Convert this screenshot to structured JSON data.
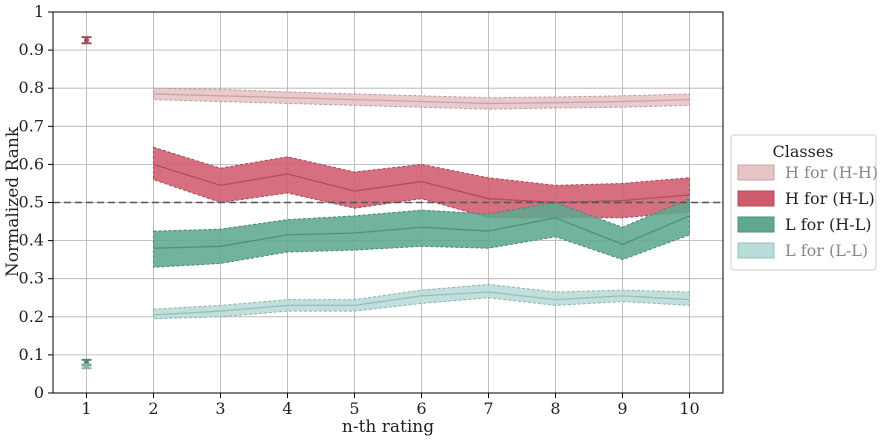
{
  "chart_data": {
    "type": "area",
    "xlabel": "n-th rating",
    "ylabel": "Normalized Rank",
    "xlim": [
      0.5,
      10.5
    ],
    "ylim": [
      0,
      1
    ],
    "x_ticks": [
      1,
      2,
      3,
      4,
      5,
      6,
      7,
      8,
      9,
      10
    ],
    "y_ticks": [
      0,
      0.1,
      0.2,
      0.3,
      0.4,
      0.5,
      0.6,
      0.7,
      0.8,
      0.9,
      1
    ],
    "y_tick_labels": [
      "0",
      "0.1",
      "0.2",
      "0.3",
      "0.4",
      "0.5",
      "0.6",
      "0.7",
      "0.8",
      "0.9",
      "1"
    ],
    "grid": true,
    "reference_line": 0.5,
    "legend_title": "Classes",
    "legend_position": "right",
    "series": [
      {
        "name": "H for (H-H)",
        "color": "#e7c3c6",
        "x": [
          2,
          3,
          4,
          5,
          6,
          7,
          8,
          9,
          10
        ],
        "mean": [
          0.785,
          0.78,
          0.775,
          0.77,
          0.765,
          0.76,
          0.762,
          0.765,
          0.77
        ],
        "lower": [
          0.77,
          0.765,
          0.76,
          0.755,
          0.75,
          0.745,
          0.748,
          0.75,
          0.755
        ],
        "upper": [
          0.8,
          0.797,
          0.79,
          0.785,
          0.78,
          0.775,
          0.777,
          0.78,
          0.785
        ],
        "point_x1": {
          "value": 0.0,
          "err": 0.0
        }
      },
      {
        "name": "H for (H-L)",
        "color": "#d05b6d",
        "x": [
          2,
          3,
          4,
          5,
          6,
          7,
          8,
          9,
          10
        ],
        "mean": [
          0.6,
          0.545,
          0.575,
          0.53,
          0.555,
          0.51,
          0.5,
          0.505,
          0.52
        ],
        "lower": [
          0.56,
          0.5,
          0.525,
          0.485,
          0.51,
          0.46,
          0.46,
          0.46,
          0.475
        ],
        "upper": [
          0.645,
          0.59,
          0.62,
          0.58,
          0.6,
          0.565,
          0.545,
          0.55,
          0.565
        ],
        "point_x1": {
          "value": 0.926,
          "err": 0.008
        }
      },
      {
        "name": "L for (H-L)",
        "color": "#5fa88f",
        "x": [
          2,
          3,
          4,
          5,
          6,
          7,
          8,
          9,
          10
        ],
        "mean": [
          0.38,
          0.385,
          0.415,
          0.42,
          0.435,
          0.425,
          0.46,
          0.39,
          0.465
        ],
        "lower": [
          0.33,
          0.34,
          0.37,
          0.375,
          0.385,
          0.38,
          0.41,
          0.35,
          0.415
        ],
        "upper": [
          0.425,
          0.43,
          0.455,
          0.465,
          0.48,
          0.47,
          0.5,
          0.435,
          0.51
        ],
        "point_x1": {
          "value": 0.08,
          "err": 0.007
        }
      },
      {
        "name": "L for (L-L)",
        "color": "#b7dcda",
        "x": [
          2,
          3,
          4,
          5,
          6,
          7,
          8,
          9,
          10
        ],
        "mean": [
          0.205,
          0.215,
          0.23,
          0.23,
          0.255,
          0.265,
          0.245,
          0.255,
          0.245
        ],
        "lower": [
          0.195,
          0.2,
          0.215,
          0.215,
          0.235,
          0.25,
          0.23,
          0.24,
          0.23
        ],
        "upper": [
          0.22,
          0.23,
          0.245,
          0.245,
          0.27,
          0.285,
          0.265,
          0.27,
          0.265
        ],
        "point_x1": {
          "value": 0.07,
          "err": 0.005
        }
      }
    ]
  }
}
